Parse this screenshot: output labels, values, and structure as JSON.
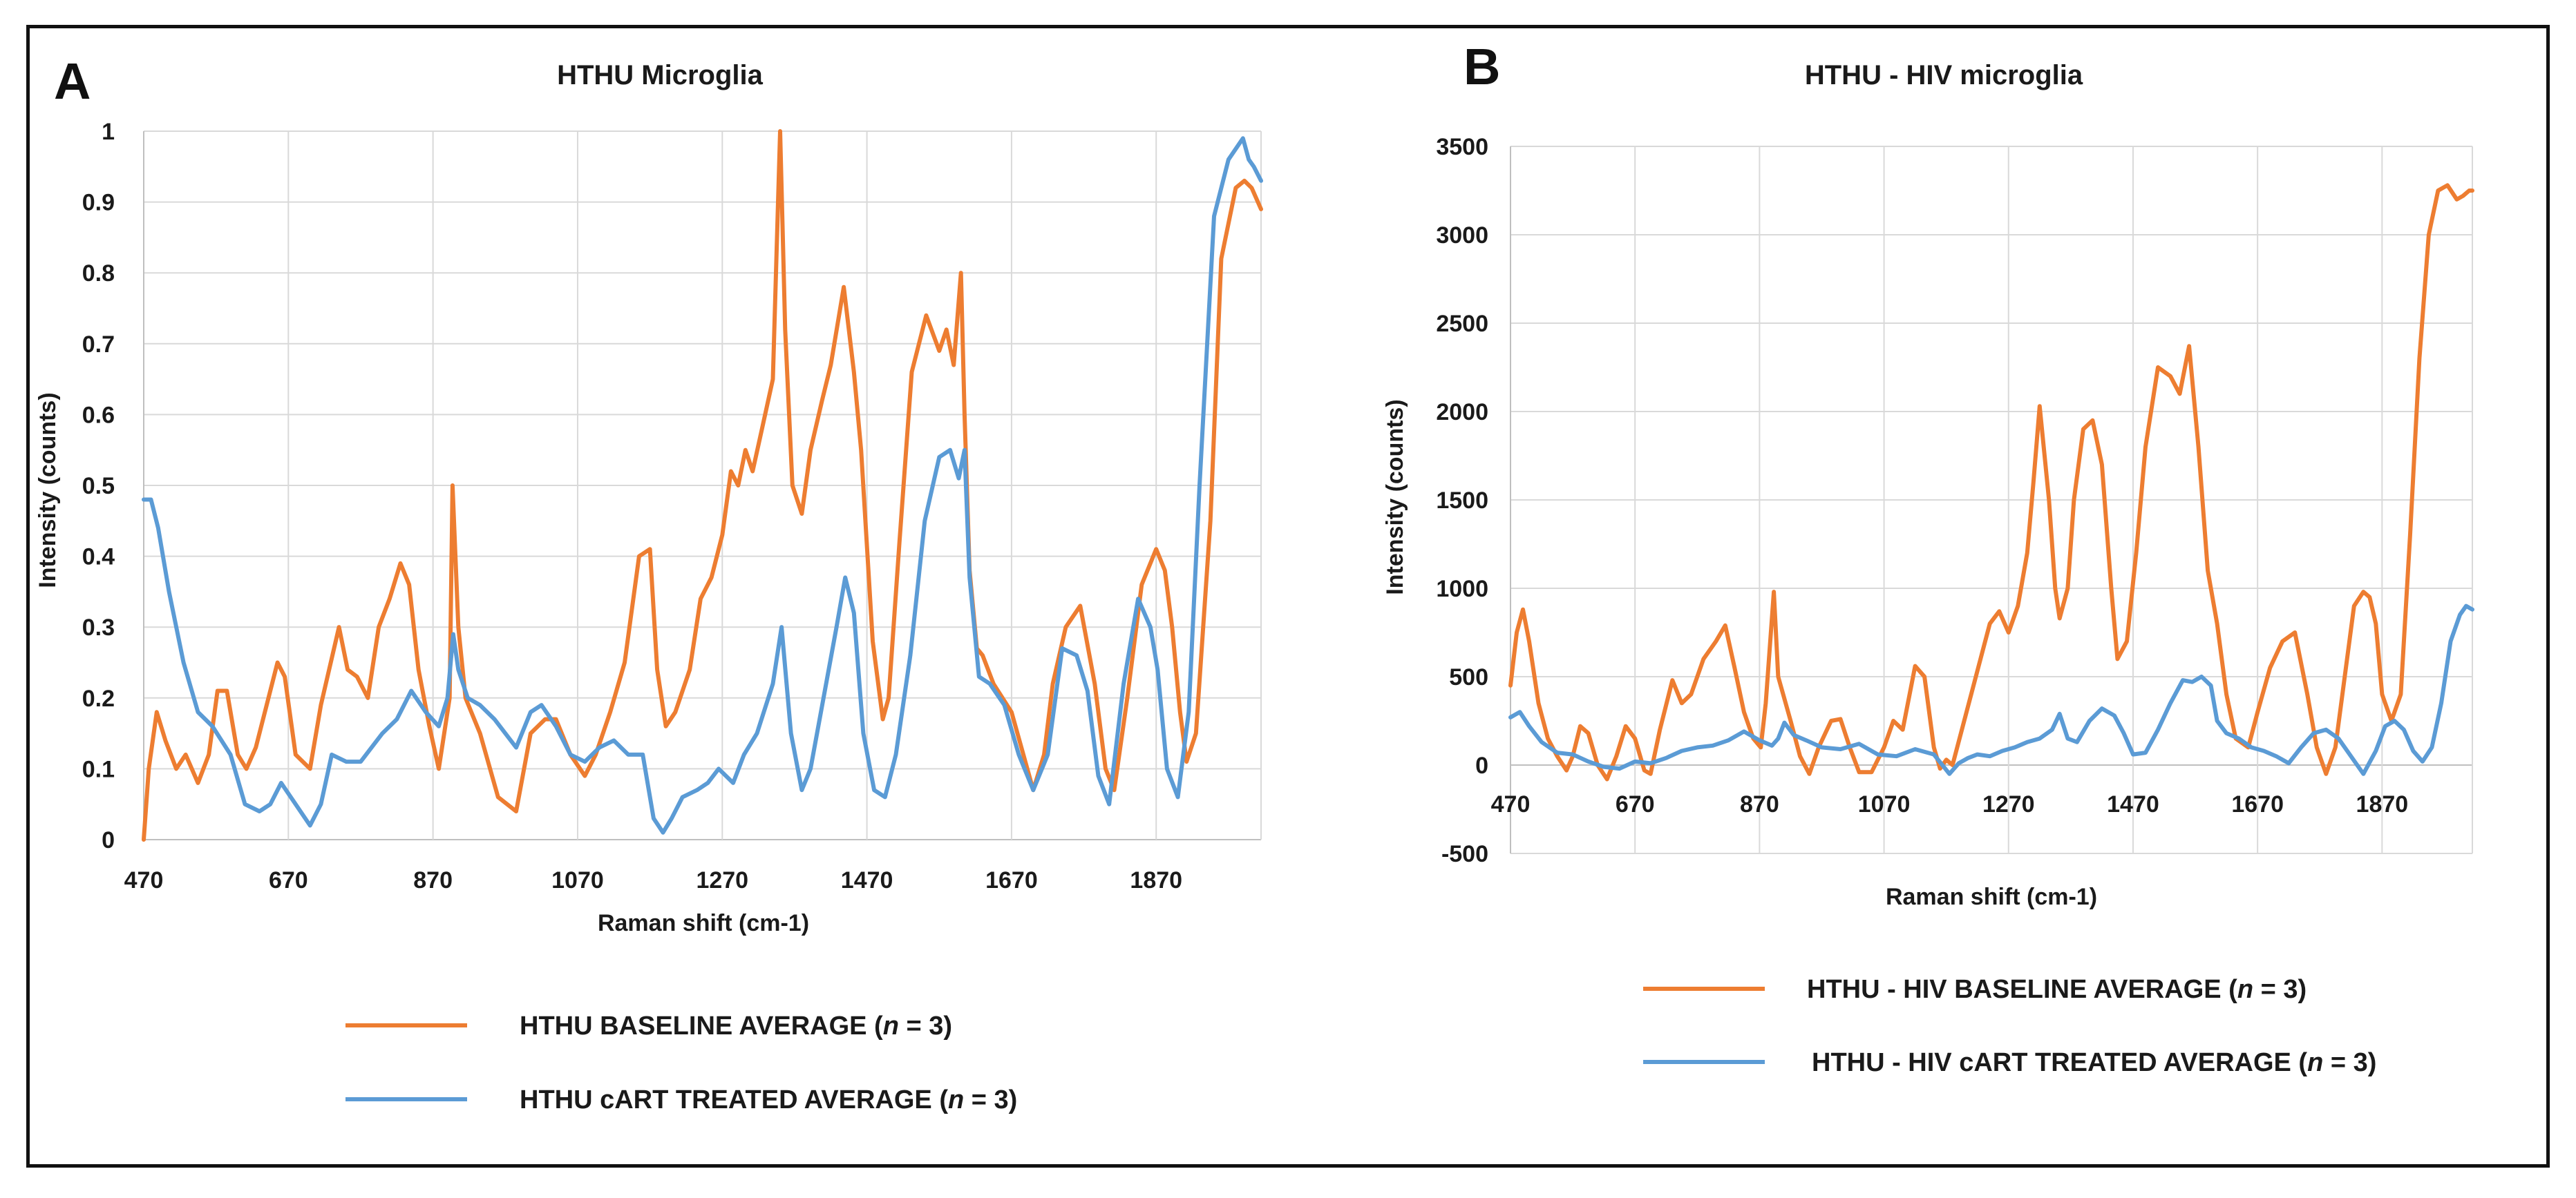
{
  "colors": {
    "baseline": "#ED7D31",
    "treated": "#5B9BD5"
  },
  "chart_data": [
    {
      "type": "line",
      "panel_label": "A",
      "title": "HTHU Microglia",
      "xlabel": "Raman shift (cm-1)",
      "ylabel": "Intensity (counts)",
      "xlim": [
        470,
        2015
      ],
      "ylim": [
        0,
        1
      ],
      "xticks": [
        470,
        670,
        870,
        1070,
        1270,
        1470,
        1670,
        1870
      ],
      "xtick_labels": [
        "470",
        "670",
        "870",
        "1070",
        "1270",
        "1470",
        "1670",
        "1870"
      ],
      "yticks": [
        0,
        0.1,
        0.2,
        0.3,
        0.4,
        0.5,
        0.6,
        0.7,
        0.8,
        0.9,
        1
      ],
      "ytick_labels": [
        "0",
        "0.1",
        "0.2",
        "0.3",
        "0.4",
        "0.5",
        "0.6",
        "0.7",
        "0.8",
        "0.9",
        "1"
      ],
      "legend": [
        {
          "prefix": "HTHU BASELINE AVERAGE (",
          "italic": "n",
          "suffix": " = 3)"
        },
        {
          "prefix": "HTHU cART TREATED AVERAGE  (",
          "italic": "n",
          "suffix": " = 3)"
        }
      ],
      "series": [
        {
          "name": "HTHU BASELINE AVERAGE (n = 3)",
          "x": [
            470,
            477,
            488,
            500,
            515,
            528,
            545,
            560,
            572,
            585,
            600,
            612,
            625,
            640,
            655,
            665,
            680,
            700,
            715,
            740,
            752,
            765,
            780,
            795,
            810,
            825,
            837,
            850,
            865,
            878,
            893,
            897,
            905,
            915,
            935,
            960,
            985,
            1005,
            1025,
            1040,
            1060,
            1080,
            1095,
            1115,
            1135,
            1155,
            1170,
            1180,
            1192,
            1205,
            1225,
            1240,
            1255,
            1270,
            1282,
            1292,
            1302,
            1312,
            1325,
            1340,
            1350,
            1357,
            1367,
            1380,
            1392,
            1408,
            1420,
            1438,
            1452,
            1462,
            1478,
            1492,
            1500,
            1515,
            1532,
            1552,
            1570,
            1580,
            1590,
            1600,
            1605,
            1612,
            1622,
            1630,
            1645,
            1670,
            1700,
            1715,
            1727,
            1745,
            1765,
            1785,
            1800,
            1812,
            1830,
            1850,
            1870,
            1882,
            1892,
            1903,
            1912,
            1925,
            1945,
            1960,
            1980,
            1992,
            2002,
            2015
          ],
          "y": [
            0.0,
            0.1,
            0.18,
            0.14,
            0.1,
            0.12,
            0.08,
            0.12,
            0.21,
            0.21,
            0.12,
            0.1,
            0.13,
            0.19,
            0.25,
            0.23,
            0.12,
            0.1,
            0.19,
            0.3,
            0.24,
            0.23,
            0.2,
            0.3,
            0.34,
            0.39,
            0.36,
            0.24,
            0.16,
            0.1,
            0.2,
            0.5,
            0.3,
            0.2,
            0.15,
            0.06,
            0.04,
            0.15,
            0.17,
            0.17,
            0.12,
            0.09,
            0.12,
            0.18,
            0.25,
            0.4,
            0.41,
            0.24,
            0.16,
            0.18,
            0.24,
            0.34,
            0.37,
            0.43,
            0.52,
            0.5,
            0.55,
            0.52,
            0.58,
            0.65,
            1.0,
            0.72,
            0.5,
            0.46,
            0.55,
            0.62,
            0.67,
            0.78,
            0.66,
            0.55,
            0.28,
            0.17,
            0.2,
            0.42,
            0.66,
            0.74,
            0.69,
            0.72,
            0.67,
            0.8,
            0.6,
            0.38,
            0.27,
            0.26,
            0.22,
            0.18,
            0.07,
            0.12,
            0.22,
            0.3,
            0.33,
            0.22,
            0.1,
            0.07,
            0.2,
            0.36,
            0.41,
            0.38,
            0.3,
            0.18,
            0.11,
            0.15,
            0.45,
            0.82,
            0.92,
            0.93,
            0.92,
            0.89
          ]
        },
        {
          "name": "HTHU cART TREATED AVERAGE  (n = 3)",
          "x": [
            470,
            480,
            490,
            505,
            525,
            545,
            565,
            590,
            610,
            630,
            645,
            660,
            680,
            700,
            715,
            730,
            750,
            770,
            800,
            820,
            840,
            860,
            878,
            890,
            898,
            905,
            918,
            935,
            955,
            970,
            985,
            1005,
            1020,
            1040,
            1060,
            1080,
            1100,
            1120,
            1140,
            1160,
            1175,
            1188,
            1200,
            1215,
            1235,
            1250,
            1265,
            1285,
            1300,
            1318,
            1340,
            1352,
            1365,
            1380,
            1392,
            1410,
            1428,
            1440,
            1452,
            1465,
            1480,
            1495,
            1510,
            1530,
            1550,
            1570,
            1585,
            1597,
            1605,
            1612,
            1625,
            1640,
            1660,
            1680,
            1700,
            1720,
            1740,
            1760,
            1775,
            1790,
            1805,
            1825,
            1845,
            1862,
            1872,
            1885,
            1900,
            1915,
            1930,
            1950,
            1970,
            1990,
            1998,
            2005,
            2015
          ],
          "y": [
            0.48,
            0.48,
            0.44,
            0.35,
            0.25,
            0.18,
            0.16,
            0.12,
            0.05,
            0.04,
            0.05,
            0.08,
            0.05,
            0.02,
            0.05,
            0.12,
            0.11,
            0.11,
            0.15,
            0.17,
            0.21,
            0.18,
            0.16,
            0.2,
            0.29,
            0.24,
            0.2,
            0.19,
            0.17,
            0.15,
            0.13,
            0.18,
            0.19,
            0.16,
            0.12,
            0.11,
            0.13,
            0.14,
            0.12,
            0.12,
            0.03,
            0.01,
            0.03,
            0.06,
            0.07,
            0.08,
            0.1,
            0.08,
            0.12,
            0.15,
            0.22,
            0.3,
            0.15,
            0.07,
            0.1,
            0.2,
            0.3,
            0.37,
            0.32,
            0.15,
            0.07,
            0.06,
            0.12,
            0.26,
            0.45,
            0.54,
            0.55,
            0.51,
            0.55,
            0.37,
            0.23,
            0.22,
            0.19,
            0.12,
            0.07,
            0.12,
            0.27,
            0.26,
            0.21,
            0.09,
            0.05,
            0.22,
            0.34,
            0.3,
            0.24,
            0.1,
            0.06,
            0.18,
            0.5,
            0.88,
            0.96,
            0.99,
            0.96,
            0.95,
            0.93
          ]
        }
      ]
    },
    {
      "type": "line",
      "panel_label": "B",
      "title": "HTHU - HIV microglia",
      "xlabel": "Raman shift (cm-1)",
      "ylabel": "Intensity (counts)",
      "xlim": [
        470,
        2015
      ],
      "ylim": [
        -500,
        3500
      ],
      "xticks": [
        470,
        670,
        870,
        1070,
        1270,
        1470,
        1670,
        1870
      ],
      "xtick_labels": [
        "470",
        "670",
        "870",
        "1070",
        "1270",
        "1470",
        "1670",
        "1870"
      ],
      "yticks": [
        -500,
        0,
        500,
        1000,
        1500,
        2000,
        2500,
        3000,
        3500
      ],
      "ytick_labels": [
        "-500",
        "0",
        "500",
        "1000",
        "1500",
        "2000",
        "2500",
        "3000",
        "3500"
      ],
      "legend": [
        {
          "prefix": "HTHU - HIV  BASELINE AVERAGE (",
          "italic": "n",
          "suffix": " = 3)"
        },
        {
          "prefix": "HTHU - HIV  cART TREATED   AVERAGE  (",
          "italic": "n",
          "suffix": " = 3)"
        }
      ],
      "series": [
        {
          "name": "HTHU - HIV  BASELINE AVERAGE (n = 3)",
          "x": [
            470,
            480,
            490,
            500,
            515,
            530,
            545,
            560,
            570,
            582,
            595,
            610,
            625,
            640,
            655,
            670,
            685,
            695,
            710,
            730,
            745,
            760,
            780,
            800,
            815,
            830,
            845,
            860,
            872,
            880,
            893,
            900,
            908,
            920,
            935,
            950,
            965,
            985,
            1000,
            1015,
            1030,
            1050,
            1070,
            1085,
            1100,
            1120,
            1135,
            1150,
            1160,
            1170,
            1180,
            1195,
            1210,
            1225,
            1240,
            1255,
            1270,
            1285,
            1300,
            1310,
            1320,
            1335,
            1345,
            1352,
            1365,
            1375,
            1390,
            1405,
            1420,
            1435,
            1445,
            1460,
            1475,
            1490,
            1510,
            1530,
            1545,
            1560,
            1575,
            1590,
            1600,
            1605,
            1620,
            1635,
            1655,
            1670,
            1690,
            1710,
            1730,
            1750,
            1765,
            1780,
            1795,
            1810,
            1825,
            1840,
            1850,
            1860,
            1870,
            1885,
            1900,
            1915,
            1930,
            1945,
            1960,
            1975,
            1990,
            2000,
            2010,
            2015
          ],
          "y": [
            450,
            750,
            880,
            700,
            350,
            150,
            50,
            -30,
            50,
            220,
            180,
            0,
            -80,
            50,
            220,
            150,
            -30,
            -50,
            200,
            480,
            350,
            400,
            600,
            700,
            790,
            550,
            300,
            150,
            100,
            350,
            980,
            500,
            400,
            250,
            50,
            -50,
            100,
            250,
            260,
            100,
            -40,
            -40,
            100,
            250,
            200,
            560,
            500,
            100,
            -20,
            30,
            0,
            200,
            400,
            600,
            800,
            870,
            750,
            900,
            1200,
            1600,
            2030,
            1500,
            1000,
            830,
            1000,
            1500,
            1900,
            1950,
            1700,
            1000,
            600,
            700,
            1200,
            1800,
            2250,
            2200,
            2100,
            2370,
            1800,
            1100,
            900,
            800,
            400,
            150,
            100,
            300,
            550,
            700,
            750,
            400,
            100,
            -50,
            100,
            500,
            900,
            980,
            950,
            800,
            400,
            250,
            400,
            1300,
            2300,
            3000,
            3250,
            3280,
            3200,
            3220,
            3250,
            3250
          ]
        },
        {
          "name": "HTHU - HIV  cART TREATED   AVERAGE  (n = 3)",
          "x": [
            470,
            485,
            500,
            520,
            545,
            570,
            595,
            620,
            645,
            670,
            695,
            720,
            745,
            770,
            795,
            820,
            845,
            870,
            890,
            900,
            910,
            925,
            945,
            970,
            1000,
            1030,
            1060,
            1090,
            1120,
            1150,
            1175,
            1190,
            1205,
            1220,
            1240,
            1260,
            1280,
            1300,
            1320,
            1340,
            1352,
            1365,
            1380,
            1400,
            1420,
            1440,
            1455,
            1470,
            1490,
            1510,
            1530,
            1550,
            1565,
            1580,
            1595,
            1605,
            1620,
            1640,
            1660,
            1680,
            1700,
            1720,
            1740,
            1760,
            1780,
            1800,
            1820,
            1840,
            1860,
            1875,
            1890,
            1905,
            1920,
            1935,
            1950,
            1965,
            1980,
            1995,
            2005,
            2015
          ],
          "y": [
            270,
            300,
            220,
            130,
            70,
            60,
            20,
            -10,
            -20,
            20,
            10,
            40,
            80,
            100,
            110,
            140,
            190,
            140,
            110,
            150,
            240,
            170,
            140,
            100,
            90,
            120,
            60,
            50,
            90,
            60,
            -50,
            10,
            40,
            60,
            50,
            80,
            100,
            130,
            150,
            200,
            290,
            150,
            130,
            250,
            320,
            280,
            180,
            60,
            70,
            200,
            350,
            480,
            470,
            500,
            450,
            250,
            180,
            150,
            100,
            80,
            50,
            10,
            100,
            180,
            200,
            150,
            50,
            -50,
            80,
            220,
            250,
            200,
            80,
            20,
            100,
            350,
            700,
            850,
            900,
            880
          ]
        }
      ]
    }
  ]
}
